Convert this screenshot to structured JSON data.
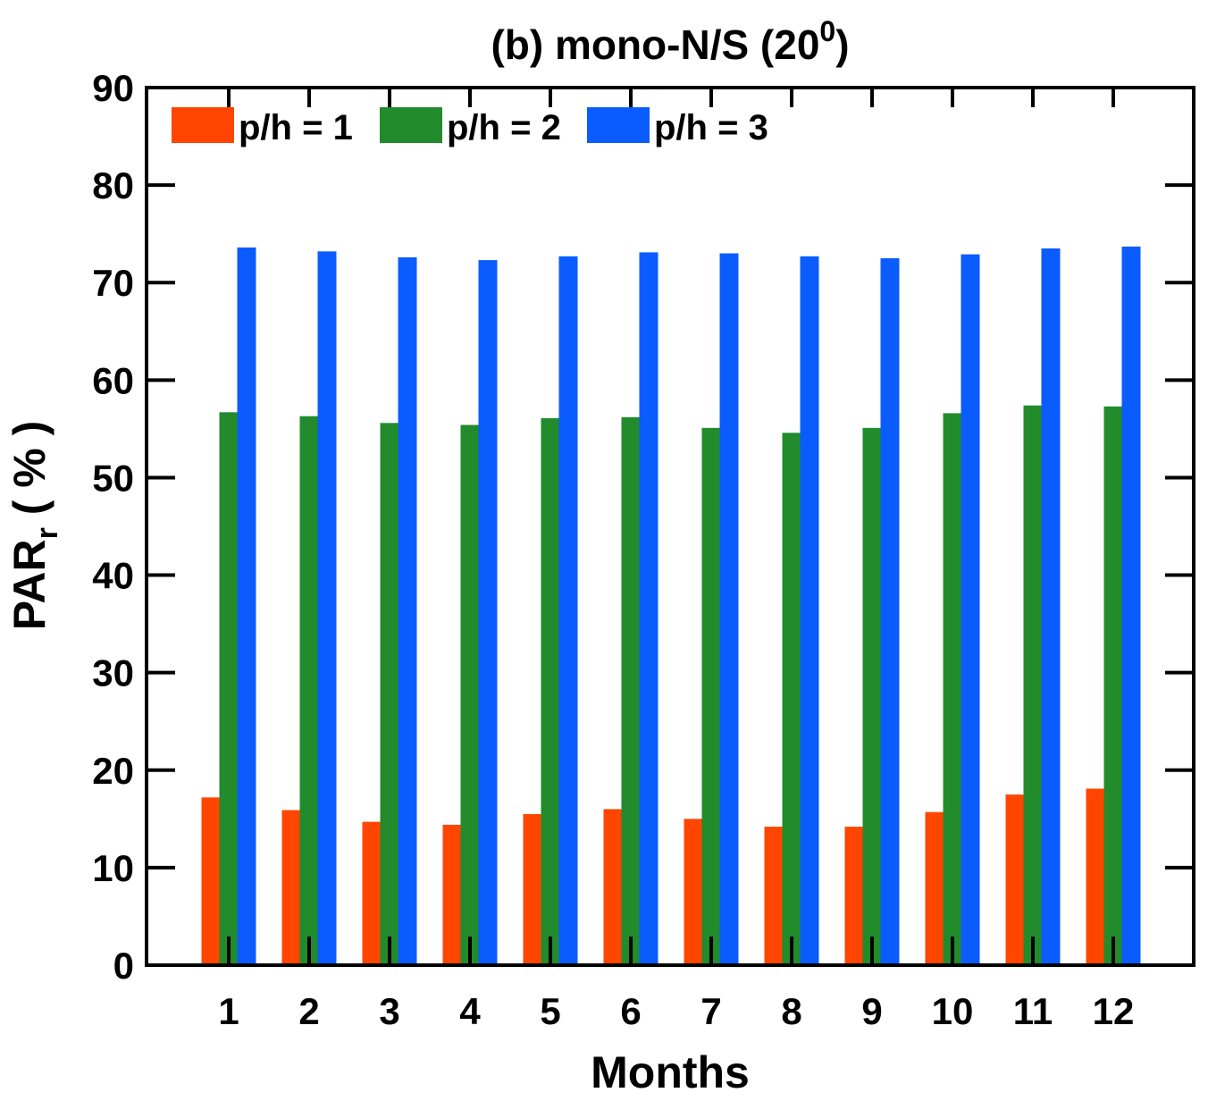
{
  "chart_data": {
    "type": "bar",
    "title_main": "(b) mono-N/S (20",
    "title_sup": "0",
    "title_close": ")",
    "xlabel": "Months",
    "ylabel_main": "PAR",
    "ylabel_sub": "r",
    "ylabel_unit": " ( % )",
    "categories": [
      "1",
      "2",
      "3",
      "4",
      "5",
      "6",
      "7",
      "8",
      "9",
      "10",
      "11",
      "12"
    ],
    "ylim": [
      0,
      90
    ],
    "yticks": [
      "0",
      "10",
      "20",
      "30",
      "40",
      "50",
      "60",
      "70",
      "80",
      "90"
    ],
    "legend_position": "top-left",
    "series": [
      {
        "name": "p/h = 1",
        "color": "#ff4500",
        "values": [
          17.2,
          15.9,
          14.7,
          14.4,
          15.5,
          16.0,
          15.0,
          14.2,
          14.2,
          15.7,
          17.5,
          18.1
        ]
      },
      {
        "name": "p/h = 2",
        "color": "#228b2b",
        "values": [
          56.7,
          56.3,
          55.6,
          55.4,
          56.1,
          56.2,
          55.1,
          54.6,
          55.1,
          56.6,
          57.4,
          57.3
        ]
      },
      {
        "name": "p/h = 3",
        "color": "#0b5cff",
        "values": [
          73.6,
          73.2,
          72.6,
          72.3,
          72.7,
          73.1,
          73.0,
          72.7,
          72.5,
          72.9,
          73.5,
          73.7
        ]
      }
    ]
  }
}
